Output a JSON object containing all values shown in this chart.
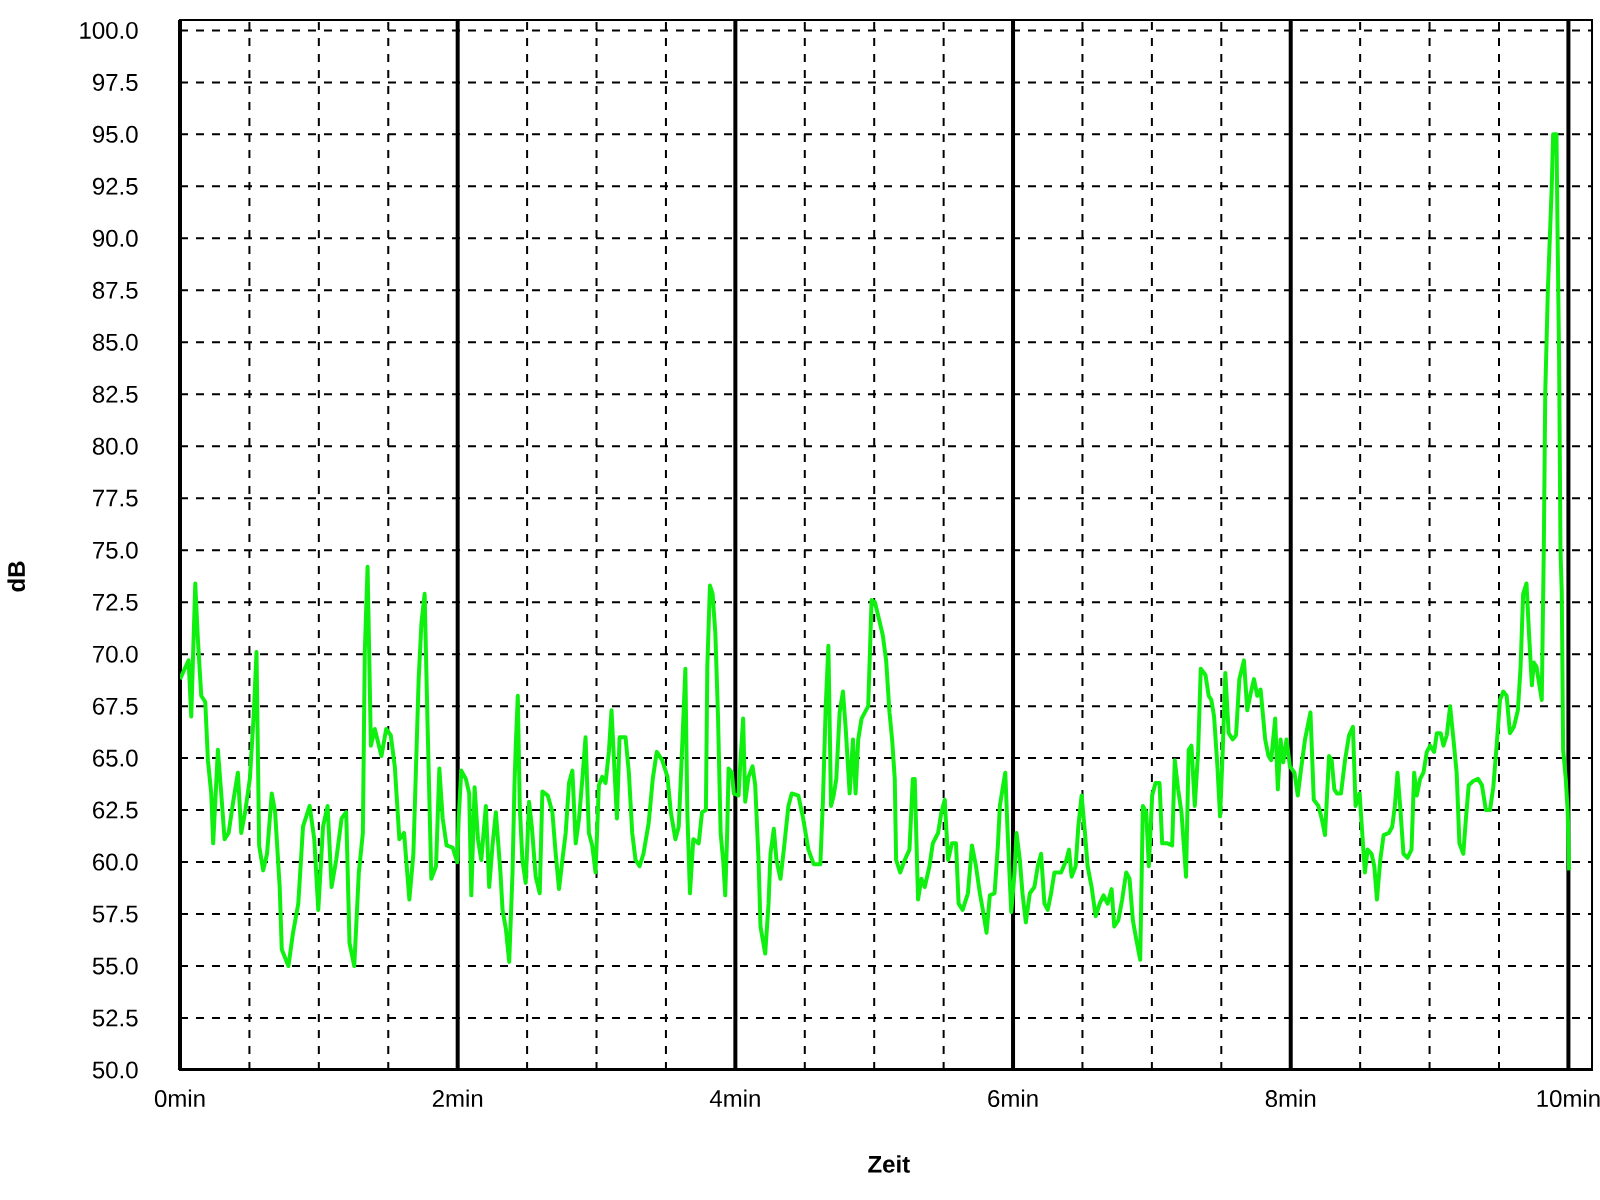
{
  "chart_data": {
    "type": "line",
    "xlabel": "Zeit",
    "ylabel": "dB",
    "x": [
      0,
      0.034,
      0.062,
      0.081,
      0.11,
      0.129,
      0.153,
      0.182,
      0.201,
      0.225,
      0.239,
      0.273,
      0.297,
      0.321,
      0.35,
      0.383,
      0.417,
      0.441,
      0.469,
      0.503,
      0.532,
      0.551,
      0.57,
      0.599,
      0.627,
      0.661,
      0.685,
      0.718,
      0.733,
      0.781,
      0.814,
      0.852,
      0.886,
      0.934,
      0.967,
      0.996,
      1.03,
      1.063,
      1.092,
      1.125,
      1.164,
      1.197,
      1.221,
      1.255,
      1.288,
      1.317,
      1.331,
      1.351,
      1.375,
      1.403,
      1.451,
      1.485,
      1.518,
      1.547,
      1.58,
      1.614,
      1.652,
      1.681,
      1.7,
      1.719,
      1.739,
      1.762,
      1.782,
      1.81,
      1.844,
      1.868,
      1.892,
      1.92,
      1.964,
      1.997,
      2.007,
      2.026,
      2.059,
      2.083,
      2.098,
      2.122,
      2.146,
      2.17,
      2.203,
      2.227,
      2.251,
      2.275,
      2.308,
      2.323,
      2.347,
      2.371,
      2.395,
      2.409,
      2.419,
      2.433,
      2.447,
      2.466,
      2.49,
      2.514,
      2.534,
      2.562,
      2.591,
      2.61,
      2.649,
      2.682,
      2.706,
      2.73,
      2.754,
      2.778,
      2.802,
      2.826,
      2.85,
      2.874,
      2.898,
      2.921,
      2.945,
      2.969,
      2.993,
      3.017,
      3.041,
      3.065,
      3.089,
      3.108,
      3.128,
      3.147,
      3.166,
      3.209,
      3.233,
      3.257,
      3.281,
      3.31,
      3.338,
      3.376,
      3.405,
      3.434,
      3.473,
      3.511,
      3.535,
      3.568,
      3.592,
      3.616,
      3.64,
      3.654,
      3.673,
      3.697,
      3.736,
      3.76,
      3.788,
      3.798,
      3.817,
      3.836,
      3.856,
      3.875,
      3.894,
      3.913,
      3.927,
      3.941,
      3.951,
      3.975,
      3.989,
      4.023,
      4.037,
      4.056,
      4.071,
      4.095,
      4.124,
      4.143,
      4.167,
      4.181,
      4.215,
      4.239,
      4.253,
      4.277,
      4.296,
      4.325,
      4.349,
      4.382,
      4.406,
      4.454,
      4.488,
      4.526,
      4.564,
      4.612,
      4.631,
      4.651,
      4.67,
      4.689,
      4.708,
      4.727,
      4.751,
      4.775,
      4.794,
      4.823,
      4.847,
      4.866,
      4.885,
      4.909,
      4.933,
      4.957,
      4.981,
      5.005,
      5.034,
      5.062,
      5.086,
      5.11,
      5.129,
      5.148,
      5.158,
      5.187,
      5.22,
      5.254,
      5.278,
      5.292,
      5.316,
      5.34,
      5.364,
      5.398,
      5.422,
      5.46,
      5.484,
      5.508,
      5.532,
      5.56,
      5.589,
      5.608,
      5.637,
      5.675,
      5.704,
      5.733,
      5.761,
      5.785,
      5.809,
      5.833,
      5.867,
      5.891,
      5.905,
      5.924,
      5.944,
      5.963,
      5.987,
      6.011,
      6.025,
      6.049,
      6.068,
      6.092,
      6.121,
      6.154,
      6.178,
      6.202,
      6.226,
      6.25,
      6.274,
      6.298,
      6.346,
      6.384,
      6.403,
      6.422,
      6.451,
      6.47,
      6.494,
      6.518,
      6.537,
      6.566,
      6.595,
      6.624,
      6.652,
      6.681,
      6.71,
      6.729,
      6.758,
      6.786,
      6.815,
      6.839,
      6.863,
      6.887,
      6.916,
      6.935,
      6.959,
      6.978,
      7.002,
      7.026,
      7.055,
      7.074,
      7.112,
      7.146,
      7.165,
      7.189,
      7.213,
      7.246,
      7.265,
      7.285,
      7.309,
      7.333,
      7.352,
      7.386,
      7.409,
      7.428,
      7.448,
      7.472,
      7.491,
      7.51,
      7.529,
      7.553,
      7.582,
      7.606,
      7.63,
      7.663,
      7.687,
      7.711,
      7.735,
      7.759,
      7.783,
      7.816,
      7.84,
      7.859,
      7.888,
      7.907,
      7.927,
      7.946,
      7.97,
      7.994,
      8.027,
      8.051,
      8.075,
      8.103,
      8.142,
      8.166,
      8.199,
      8.223,
      8.247,
      8.276,
      8.295,
      8.314,
      8.333,
      8.362,
      8.391,
      8.42,
      8.448,
      8.467,
      8.496,
      8.515,
      8.534,
      8.554,
      8.582,
      8.602,
      8.621,
      8.645,
      8.669,
      8.707,
      8.731,
      8.75,
      8.769,
      8.788,
      8.812,
      8.841,
      8.87,
      8.889,
      8.908,
      8.932,
      8.956,
      8.98,
      9.004,
      9.033,
      9.052,
      9.08,
      9.1,
      9.124,
      9.148,
      9.172,
      9.195,
      9.215,
      9.243,
      9.262,
      9.282,
      9.315,
      9.349,
      9.377,
      9.406,
      9.435,
      9.459,
      9.483,
      9.507,
      9.531,
      9.555,
      9.579,
      9.607,
      9.636,
      9.655,
      9.674,
      9.698,
      9.717,
      9.737,
      9.751,
      9.77,
      9.784,
      9.808,
      9.823,
      9.833,
      9.852,
      9.866,
      9.88,
      9.89,
      9.914,
      9.923,
      9.933,
      9.943,
      9.952,
      9.962,
      9.981,
      9.995,
      10.005
    ],
    "series": [
      {
        "color": "#10f010",
        "values": [
          68.8,
          69.3,
          69.7,
          67.0,
          73.4,
          70.7,
          68.0,
          67.7,
          64.9,
          63.3,
          60.9,
          65.4,
          63.3,
          61.1,
          61.4,
          62.9,
          64.3,
          61.4,
          62.4,
          64.0,
          67.2,
          70.1,
          60.8,
          59.6,
          60.4,
          63.3,
          62.4,
          58.8,
          55.8,
          55.0,
          56.6,
          58.0,
          61.7,
          62.7,
          61.1,
          57.7,
          61.7,
          62.7,
          58.8,
          60.1,
          62.1,
          62.4,
          56.1,
          55.0,
          59.5,
          61.4,
          70.1,
          74.2,
          65.6,
          66.4,
          65.1,
          66.4,
          66.1,
          64.6,
          61.1,
          61.4,
          58.2,
          60.4,
          64.6,
          68.8,
          71.5,
          72.9,
          66.9,
          59.2,
          59.8,
          64.5,
          62.1,
          60.8,
          60.7,
          60.0,
          62.1,
          64.4,
          64.0,
          63.3,
          58.4,
          63.6,
          61.1,
          60.1,
          62.7,
          58.8,
          60.8,
          62.4,
          59.5,
          57.7,
          56.8,
          55.2,
          59.5,
          63.7,
          65.7,
          68.0,
          62.7,
          60.1,
          59.0,
          62.9,
          61.7,
          59.3,
          58.5,
          63.4,
          63.2,
          62.4,
          60.4,
          58.7,
          60.1,
          61.4,
          63.8,
          64.4,
          60.9,
          62.1,
          64.0,
          66.0,
          61.4,
          60.8,
          59.5,
          63.7,
          64.1,
          63.8,
          65.3,
          67.3,
          64.6,
          62.1,
          66.0,
          66.0,
          64.3,
          61.4,
          60.1,
          59.8,
          60.4,
          61.9,
          64.0,
          65.3,
          64.9,
          64.1,
          62.4,
          61.1,
          61.7,
          65.4,
          69.3,
          62.4,
          58.5,
          61.1,
          60.9,
          62.4,
          62.5,
          69.4,
          73.3,
          72.9,
          71.0,
          67.0,
          61.4,
          60.0,
          58.4,
          61.4,
          64.5,
          64.3,
          63.3,
          63.2,
          64.9,
          66.9,
          62.9,
          64.1,
          64.6,
          63.7,
          60.1,
          56.9,
          55.6,
          58.0,
          60.4,
          61.6,
          60.1,
          59.2,
          60.6,
          62.7,
          63.3,
          63.2,
          62.1,
          60.6,
          59.9,
          59.9,
          63.0,
          67.5,
          70.4,
          62.7,
          63.2,
          64.0,
          67.2,
          68.2,
          66.5,
          63.3,
          65.9,
          63.3,
          65.9,
          66.9,
          67.2,
          67.5,
          72.6,
          72.5,
          71.7,
          70.9,
          69.7,
          67.2,
          65.9,
          64.0,
          60.1,
          59.5,
          60.1,
          60.6,
          64.0,
          64.0,
          58.2,
          59.2,
          58.8,
          59.8,
          60.9,
          61.4,
          62.4,
          63.0,
          60.1,
          60.9,
          60.9,
          58.0,
          57.7,
          58.5,
          60.8,
          59.8,
          58.5,
          57.6,
          56.6,
          58.4,
          58.5,
          60.8,
          62.7,
          63.5,
          64.3,
          61.1,
          57.6,
          59.5,
          61.4,
          60.1,
          58.5,
          57.1,
          58.5,
          58.8,
          59.8,
          60.4,
          58.0,
          57.7,
          58.5,
          59.5,
          59.5,
          60.1,
          60.6,
          59.3,
          59.8,
          61.7,
          63.2,
          61.4,
          59.8,
          58.8,
          57.4,
          58.0,
          58.4,
          58.0,
          58.7,
          56.9,
          57.2,
          58.2,
          59.5,
          59.2,
          57.2,
          56.3,
          55.3,
          62.7,
          62.4,
          59.8,
          63.2,
          63.8,
          63.8,
          60.9,
          60.9,
          60.8,
          64.9,
          63.5,
          62.4,
          59.3,
          65.4,
          65.6,
          62.7,
          65.3,
          69.3,
          69.0,
          68.0,
          67.8,
          67.0,
          64.6,
          62.2,
          65.3,
          69.1,
          66.2,
          65.9,
          66.1,
          68.8,
          69.7,
          67.3,
          68.1,
          68.8,
          68.0,
          68.3,
          65.9,
          65.1,
          64.9,
          66.9,
          63.5,
          65.9,
          64.8,
          65.9,
          64.6,
          64.3,
          63.2,
          64.5,
          65.9,
          67.2,
          63.0,
          62.7,
          62.1,
          61.3,
          65.1,
          64.9,
          63.5,
          63.3,
          63.3,
          64.9,
          66.1,
          66.5,
          62.7,
          63.3,
          61.4,
          59.5,
          60.6,
          60.4,
          59.8,
          58.2,
          60.1,
          61.3,
          61.4,
          61.7,
          62.7,
          64.3,
          62.7,
          60.4,
          60.2,
          60.6,
          64.3,
          63.2,
          64.0,
          64.3,
          65.3,
          65.6,
          65.3,
          66.2,
          66.2,
          65.6,
          66.1,
          67.5,
          65.9,
          64.3,
          60.9,
          60.4,
          62.1,
          63.7,
          63.9,
          64.0,
          63.7,
          62.5,
          62.5,
          63.6,
          65.6,
          67.8,
          68.2,
          68.0,
          66.2,
          66.5,
          67.3,
          69.3,
          72.9,
          73.4,
          70.9,
          68.5,
          69.6,
          69.4,
          68.8,
          67.8,
          75.2,
          82.5,
          87.5,
          90.0,
          92.5,
          95.0,
          95.0,
          89.6,
          84.2,
          75.0,
          73.0,
          65.4,
          64.0,
          62.4,
          59.6
        ]
      }
    ],
    "xlim": [
      0,
      10.17
    ],
    "ylim": [
      50,
      100.5
    ],
    "xticks": [
      {
        "value": 0,
        "label": "0min"
      },
      {
        "value": 0.5,
        "label": null
      },
      {
        "value": 1,
        "label": null
      },
      {
        "value": 1.5,
        "label": null
      },
      {
        "value": 2,
        "label": "2min"
      },
      {
        "value": 2.5,
        "label": null
      },
      {
        "value": 3,
        "label": null
      },
      {
        "value": 3.5,
        "label": null
      },
      {
        "value": 4,
        "label": "4min"
      },
      {
        "value": 4.5,
        "label": null
      },
      {
        "value": 5,
        "label": null
      },
      {
        "value": 5.5,
        "label": null
      },
      {
        "value": 6,
        "label": "6min"
      },
      {
        "value": 6.5,
        "label": null
      },
      {
        "value": 7,
        "label": null
      },
      {
        "value": 7.5,
        "label": null
      },
      {
        "value": 8,
        "label": "8min"
      },
      {
        "value": 8.5,
        "label": null
      },
      {
        "value": 9,
        "label": null
      },
      {
        "value": 9.5,
        "label": null
      },
      {
        "value": 10,
        "label": "10min"
      }
    ],
    "yticks": [
      {
        "value": 50,
        "label": "50.0"
      },
      52.5,
      {
        "value": 55,
        "label": "55.0"
      },
      57.5,
      {
        "value": 60,
        "label": "60.0"
      },
      62.5,
      {
        "value": 65,
        "label": "65.0"
      },
      67.5,
      {
        "value": 70,
        "label": "70.0"
      },
      72.5,
      {
        "value": 75,
        "label": "75.0"
      },
      77.5,
      {
        "value": 80,
        "label": "80.0"
      },
      82.5,
      {
        "value": 85,
        "label": "85.0"
      },
      87.5,
      {
        "value": 90,
        "label": "90.0"
      },
      92.5,
      {
        "value": 95,
        "label": "95.0"
      },
      97.5,
      {
        "value": 100,
        "label": "100.0"
      }
    ],
    "grid": true,
    "line_style": "solid"
  }
}
